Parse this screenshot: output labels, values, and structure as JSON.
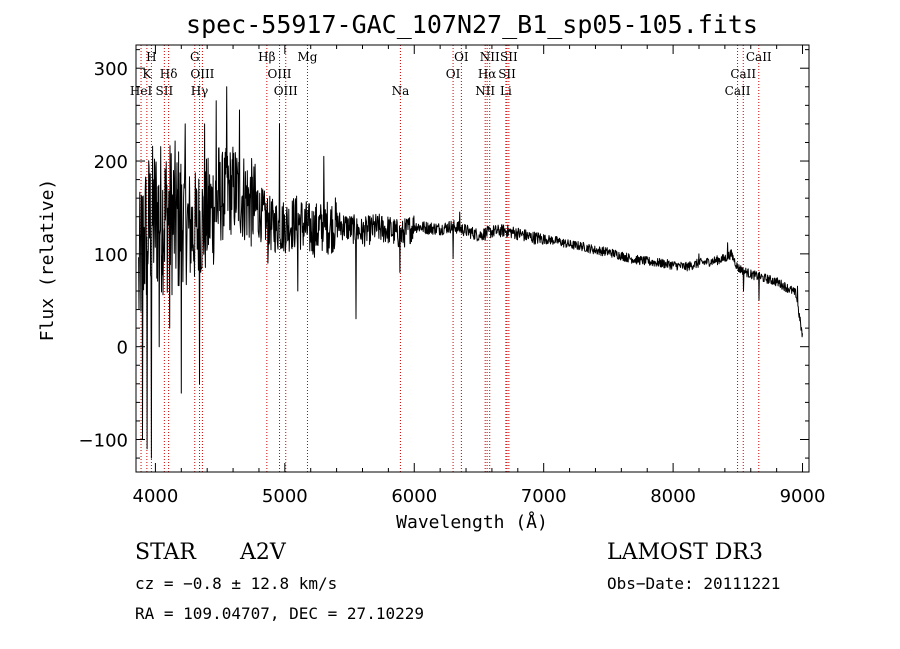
{
  "chart_data": {
    "type": "line",
    "title": "spec-55917-GAC_107N27_B1_sp05-105.fits",
    "xlabel": "Wavelength (Å)",
    "ylabel": "Flux (relative)",
    "xlim": [
      3850,
      9050
    ],
    "ylim": [
      -135,
      325
    ],
    "x_ticks": [
      {
        "value": 4000,
        "label": "4000"
      },
      {
        "value": 5000,
        "label": "5000"
      },
      {
        "value": 6000,
        "label": "6000"
      },
      {
        "value": 7000,
        "label": "7000"
      },
      {
        "value": 8000,
        "label": "8000"
      },
      {
        "value": 9000,
        "label": "9000"
      }
    ],
    "y_ticks": [
      {
        "value": -100,
        "label": "−100"
      },
      {
        "value": 0,
        "label": "0"
      },
      {
        "value": 100,
        "label": "100"
      },
      {
        "value": 200,
        "label": "200"
      },
      {
        "value": 300,
        "label": "300"
      }
    ],
    "spectrum_anchors": [
      [
        3870,
        70
      ],
      [
        3900,
        110
      ],
      [
        3950,
        130
      ],
      [
        4000,
        140
      ],
      [
        4100,
        140
      ],
      [
        4200,
        135
      ],
      [
        4300,
        125
      ],
      [
        4400,
        140
      ],
      [
        4500,
        160
      ],
      [
        4600,
        170
      ],
      [
        4700,
        160
      ],
      [
        4800,
        145
      ],
      [
        4900,
        130
      ],
      [
        5000,
        130
      ],
      [
        5100,
        135
      ],
      [
        5200,
        125
      ],
      [
        5300,
        128
      ],
      [
        5400,
        132
      ],
      [
        5500,
        128
      ],
      [
        5600,
        123
      ],
      [
        5700,
        128
      ],
      [
        5800,
        126
      ],
      [
        5900,
        120
      ],
      [
        6000,
        130
      ],
      [
        6100,
        128
      ],
      [
        6200,
        127
      ],
      [
        6300,
        130
      ],
      [
        6400,
        125
      ],
      [
        6500,
        120
      ],
      [
        6600,
        124
      ],
      [
        6700,
        125
      ],
      [
        6800,
        122
      ],
      [
        6900,
        118
      ],
      [
        7000,
        116
      ],
      [
        7100,
        114
      ],
      [
        7200,
        110
      ],
      [
        7300,
        108
      ],
      [
        7400,
        104
      ],
      [
        7500,
        102
      ],
      [
        7600,
        98
      ],
      [
        7700,
        94
      ],
      [
        7800,
        92
      ],
      [
        7900,
        90
      ],
      [
        8000,
        88
      ],
      [
        8100,
        86
      ],
      [
        8200,
        90
      ],
      [
        8300,
        92
      ],
      [
        8400,
        95
      ],
      [
        8450,
        100
      ],
      [
        8500,
        85
      ],
      [
        8600,
        78
      ],
      [
        8700,
        74
      ],
      [
        8800,
        70
      ],
      [
        8900,
        62
      ],
      [
        8950,
        57
      ],
      [
        9000,
        10
      ]
    ],
    "spectrum_features": [
      {
        "x": 3900,
        "y": -100
      },
      {
        "x": 3935,
        "y": -110
      },
      {
        "x": 3970,
        "y": -120
      },
      {
        "x": 4030,
        "y": 0
      },
      {
        "x": 4110,
        "y": 20
      },
      {
        "x": 4200,
        "y": -50
      },
      {
        "x": 4230,
        "y": 240
      },
      {
        "x": 4340,
        "y": -40
      },
      {
        "x": 4380,
        "y": 240
      },
      {
        "x": 4470,
        "y": 265
      },
      {
        "x": 4550,
        "y": 280
      },
      {
        "x": 4650,
        "y": 255
      },
      {
        "x": 4870,
        "y": 90
      },
      {
        "x": 4960,
        "y": 240
      },
      {
        "x": 5100,
        "y": 60
      },
      {
        "x": 5300,
        "y": 205
      },
      {
        "x": 5550,
        "y": 30
      },
      {
        "x": 5890,
        "y": 80
      },
      {
        "x": 6300,
        "y": 95
      },
      {
        "x": 6350,
        "y": 145
      },
      {
        "x": 8200,
        "y": 100
      },
      {
        "x": 8420,
        "y": 112
      },
      {
        "x": 8545,
        "y": 60
      },
      {
        "x": 8665,
        "y": 50
      },
      {
        "x": 8960,
        "y": 65
      }
    ],
    "spectral_lines": [
      {
        "label": "H",
        "x": 3969,
        "row": 0
      },
      {
        "label": "K",
        "x": 3934,
        "row": 1
      },
      {
        "label": "HeI",
        "x": 3889,
        "row": 2
      },
      {
        "label": "Hδ",
        "x": 4102,
        "row": 1
      },
      {
        "label": "SII",
        "x": 4069,
        "row": 2
      },
      {
        "label": "G",
        "x": 4304,
        "row": 0
      },
      {
        "label": "OIII",
        "x": 4363,
        "row": 1
      },
      {
        "label": "Hγ",
        "x": 4341,
        "row": 2
      },
      {
        "label": "Hβ",
        "x": 4861,
        "row": 0
      },
      {
        "label": "OIII",
        "x": 4959,
        "row": 1
      },
      {
        "label": "OIII",
        "x": 5007,
        "row": 2
      },
      {
        "label": "Mg",
        "x": 5175,
        "row": 0
      },
      {
        "label": "Na",
        "x": 5893,
        "row": 2
      },
      {
        "label": "OI",
        "x": 6364,
        "row": 0
      },
      {
        "label": "OI",
        "x": 6300,
        "row": 1
      },
      {
        "label": "NII",
        "x": 6583,
        "row": 0
      },
      {
        "label": "Hα",
        "x": 6563,
        "row": 1
      },
      {
        "label": "NII",
        "x": 6548,
        "row": 2
      },
      {
        "label": "SII",
        "x": 6731,
        "row": 0
      },
      {
        "label": "SII",
        "x": 6717,
        "row": 1
      },
      {
        "label": "Li",
        "x": 6708,
        "row": 2
      },
      {
        "label": "CaII",
        "x": 8662,
        "row": 0
      },
      {
        "label": "CaII",
        "x": 8542,
        "row": 1
      },
      {
        "label": "CaII",
        "x": 8498,
        "row": 2
      }
    ],
    "line_color": "#000000",
    "marker_color": "#cc0000"
  },
  "info": {
    "object_class": "STAR",
    "subclass": "A2V",
    "survey": "LAMOST DR3",
    "cz": "cz = −0.8 ± 12.8 km/s",
    "obs_date": "Obs−Date: 20111221",
    "radec": "RA = 109.04707, DEC =  27.10229"
  }
}
